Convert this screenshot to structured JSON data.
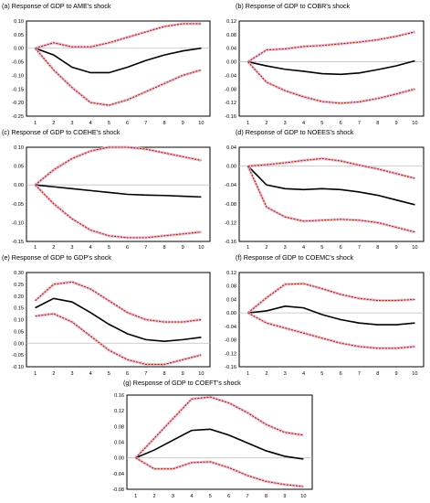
{
  "chart_data": [
    {
      "type": "line",
      "title": "(a) Response of GDP to AME's shock",
      "x": [
        1,
        2,
        3,
        4,
        5,
        6,
        7,
        8,
        9,
        10
      ],
      "ylim": [
        -0.25,
        0.1
      ],
      "yticks": [
        "0.10",
        "0.05",
        "0.00",
        "-0.05",
        "-0.10",
        "-0.15",
        "-0.20",
        "-0.25"
      ],
      "xticks": [
        "1",
        "2",
        "3",
        "4",
        "5",
        "6",
        "7",
        "8",
        "9",
        "10"
      ],
      "series": [
        {
          "role": "upper",
          "values": [
            0.0,
            0.02,
            0.005,
            0.005,
            0.02,
            0.04,
            0.06,
            0.08,
            0.09,
            0.09
          ]
        },
        {
          "role": "response",
          "values": [
            0.0,
            -0.025,
            -0.07,
            -0.09,
            -0.09,
            -0.07,
            -0.045,
            -0.025,
            -0.01,
            0.0
          ]
        },
        {
          "role": "lower",
          "values": [
            0.0,
            -0.08,
            -0.145,
            -0.2,
            -0.21,
            -0.19,
            -0.16,
            -0.13,
            -0.1,
            -0.08
          ]
        }
      ]
    },
    {
      "type": "line",
      "title": "(b) Response of GDP to COBR's shock",
      "x": [
        1,
        2,
        3,
        4,
        5,
        6,
        7,
        8,
        9,
        10
      ],
      "ylim": [
        -0.16,
        0.12
      ],
      "yticks": [
        "0.12",
        "0.08",
        "0.04",
        "0.00",
        "-0.04",
        "-0.08",
        "-0.12",
        "-0.16"
      ],
      "xticks": [
        "1",
        "2",
        "3",
        "4",
        "5",
        "6",
        "7",
        "8",
        "9",
        "10"
      ],
      "series": [
        {
          "role": "upper",
          "values": [
            0.0,
            0.035,
            0.038,
            0.045,
            0.048,
            0.053,
            0.058,
            0.065,
            0.075,
            0.088
          ]
        },
        {
          "role": "response",
          "values": [
            0.0,
            -0.012,
            -0.022,
            -0.028,
            -0.035,
            -0.037,
            -0.033,
            -0.023,
            -0.012,
            0.003
          ]
        },
        {
          "role": "lower",
          "values": [
            0.0,
            -0.06,
            -0.085,
            -0.103,
            -0.117,
            -0.122,
            -0.118,
            -0.108,
            -0.095,
            -0.08
          ]
        }
      ]
    },
    {
      "type": "line",
      "title": "(c) Response of GDP to COEHE's shock",
      "x": [
        1,
        2,
        3,
        4,
        5,
        6,
        7,
        8,
        9,
        10
      ],
      "ylim": [
        -0.15,
        0.1
      ],
      "yticks": [
        "0.10",
        "0.05",
        "0.00",
        "-0.05",
        "-0.10",
        "-0.15"
      ],
      "xticks": [
        "1",
        "2",
        "3",
        "4",
        "5",
        "6",
        "7",
        "8",
        "9",
        "10"
      ],
      "series": [
        {
          "role": "upper",
          "values": [
            0.0,
            0.04,
            0.07,
            0.09,
            0.1,
            0.1,
            0.095,
            0.085,
            0.075,
            0.065
          ]
        },
        {
          "role": "response",
          "values": [
            0.0,
            -0.005,
            -0.01,
            -0.015,
            -0.02,
            -0.025,
            -0.027,
            -0.028,
            -0.03,
            -0.032
          ]
        },
        {
          "role": "lower",
          "values": [
            0.0,
            -0.05,
            -0.09,
            -0.12,
            -0.135,
            -0.14,
            -0.14,
            -0.135,
            -0.13,
            -0.125
          ]
        }
      ]
    },
    {
      "type": "line",
      "title": "(d) Response of GDP to NOEES's shock",
      "x": [
        1,
        2,
        3,
        4,
        5,
        6,
        7,
        8,
        9,
        10
      ],
      "ylim": [
        -0.16,
        0.04
      ],
      "yticks": [
        "0.04",
        "0.00",
        "-0.04",
        "-0.08",
        "-0.12",
        "-0.16"
      ],
      "xticks": [
        "1",
        "2",
        "3",
        "4",
        "5",
        "6",
        "7",
        "8",
        "9",
        "10"
      ],
      "series": [
        {
          "role": "upper",
          "values": [
            0.0,
            0.003,
            0.007,
            0.012,
            0.016,
            0.011,
            0.002,
            -0.006,
            -0.016,
            -0.026
          ]
        },
        {
          "role": "response",
          "values": [
            0.0,
            -0.04,
            -0.048,
            -0.05,
            -0.048,
            -0.05,
            -0.055,
            -0.062,
            -0.072,
            -0.082
          ]
        },
        {
          "role": "lower",
          "values": [
            0.0,
            -0.087,
            -0.108,
            -0.117,
            -0.115,
            -0.113,
            -0.115,
            -0.12,
            -0.13,
            -0.14
          ]
        }
      ]
    },
    {
      "type": "line",
      "title": "(e) Response of GDP to GDP's shock",
      "x": [
        1,
        2,
        3,
        4,
        5,
        6,
        7,
        8,
        9,
        10
      ],
      "ylim": [
        -0.1,
        0.3
      ],
      "yticks": [
        "0.30",
        "0.25",
        "0.20",
        "0.15",
        "0.10",
        "0.05",
        "0.00",
        "-0.05",
        "-0.10"
      ],
      "xticks": [
        "1",
        "2",
        "3",
        "4",
        "5",
        "6",
        "7",
        "8",
        "9",
        "10"
      ],
      "series": [
        {
          "role": "upper",
          "values": [
            0.18,
            0.25,
            0.26,
            0.23,
            0.18,
            0.13,
            0.1,
            0.09,
            0.09,
            0.1
          ]
        },
        {
          "role": "response",
          "values": [
            0.15,
            0.19,
            0.175,
            0.13,
            0.08,
            0.04,
            0.015,
            0.008,
            0.015,
            0.025
          ]
        },
        {
          "role": "lower",
          "values": [
            0.115,
            0.125,
            0.09,
            0.03,
            -0.03,
            -0.07,
            -0.09,
            -0.09,
            -0.07,
            -0.05
          ]
        }
      ]
    },
    {
      "type": "line",
      "title": "(f) Response of GDP to COEMC's shock",
      "x": [
        1,
        2,
        3,
        4,
        5,
        6,
        7,
        8,
        9,
        10
      ],
      "ylim": [
        -0.16,
        0.12
      ],
      "yticks": [
        "0.12",
        "0.08",
        "0.04",
        "0.00",
        "-0.04",
        "-0.08",
        "-0.12",
        "-0.16"
      ],
      "xticks": [
        "1",
        "2",
        "3",
        "4",
        "5",
        "6",
        "7",
        "8",
        "9",
        "10"
      ],
      "series": [
        {
          "role": "upper",
          "values": [
            0.0,
            0.045,
            0.085,
            0.087,
            0.072,
            0.055,
            0.043,
            0.037,
            0.037,
            0.04
          ]
        },
        {
          "role": "response",
          "values": [
            0.0,
            0.006,
            0.02,
            0.015,
            -0.005,
            -0.02,
            -0.03,
            -0.035,
            -0.035,
            -0.03
          ]
        },
        {
          "role": "lower",
          "values": [
            0.0,
            -0.03,
            -0.045,
            -0.06,
            -0.075,
            -0.09,
            -0.1,
            -0.105,
            -0.105,
            -0.1
          ]
        }
      ]
    },
    {
      "type": "line",
      "title": "(g) Response of GDP to COEFT's shock",
      "x": [
        1,
        2,
        3,
        4,
        5,
        6,
        7,
        8,
        9,
        10
      ],
      "ylim": [
        -0.08,
        0.16
      ],
      "yticks": [
        "0.16",
        "0.12",
        "0.08",
        "0.04",
        "0.00",
        "-0.04",
        "-0.08"
      ],
      "xticks": [
        "1",
        "2",
        "3",
        "4",
        "5",
        "6",
        "7",
        "8",
        "9",
        "10"
      ],
      "series": [
        {
          "role": "upper",
          "values": [
            0.0,
            0.05,
            0.1,
            0.15,
            0.155,
            0.14,
            0.115,
            0.085,
            0.065,
            0.058
          ]
        },
        {
          "role": "response",
          "values": [
            0.0,
            0.02,
            0.045,
            0.07,
            0.073,
            0.058,
            0.038,
            0.018,
            0.004,
            -0.003
          ]
        },
        {
          "role": "lower",
          "values": [
            0.0,
            -0.028,
            -0.028,
            -0.012,
            -0.01,
            -0.025,
            -0.045,
            -0.06,
            -0.068,
            -0.073
          ]
        }
      ]
    }
  ],
  "colors": {
    "response": "#000000",
    "band": "#8b3a1a",
    "band_halo": "#f2b3ce",
    "zero_line": "#bfbfbf",
    "frame": "#000000"
  }
}
